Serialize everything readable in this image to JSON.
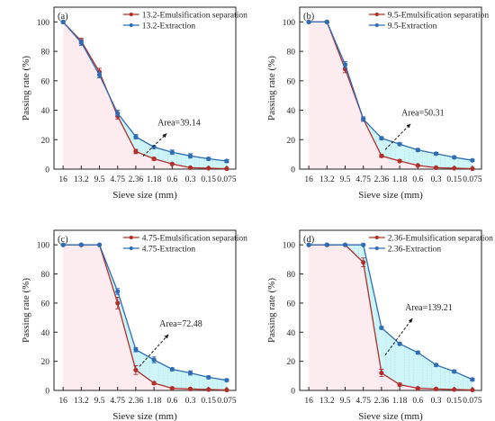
{
  "colors": {
    "emulsification": "#b0302a",
    "extraction": "#2f6db5",
    "fill": "#bdf3f7",
    "lower_fill": "#f6c8d4"
  },
  "chart_data": [
    {
      "type": "line",
      "panel_label": "(a)",
      "categories": [
        "16",
        "13.2",
        "9.5",
        "4.75",
        "2.36",
        "1.18",
        "0.6",
        "0.3",
        "0.15",
        "0.075"
      ],
      "category_offset": 1,
      "series": [
        {
          "name": "13.2-Emulsification separation",
          "values": [
            100,
            87,
            66,
            36,
            12,
            7,
            3.5,
            1,
            0.6,
            0.3
          ],
          "errors": [
            0.5,
            2,
            2.5,
            2,
            1.5,
            1,
            0.5,
            0.5,
            0.3,
            0.3
          ]
        },
        {
          "name": "13.2-Extraction",
          "values": [
            100,
            86,
            64,
            38,
            22,
            15,
            11.5,
            9,
            7,
            5.5
          ],
          "errors": [
            0.5,
            2,
            2,
            2,
            1.5,
            1,
            1.5,
            1.5,
            1,
            1
          ]
        }
      ],
      "annotation": "Area=39.14",
      "xlabel": "Sieve size (mm)",
      "ylabel": "Passing rate (%)",
      "ylim": [
        0,
        110
      ],
      "yticks": [
        0,
        20,
        40,
        60,
        80,
        100
      ],
      "legend": "top-right"
    },
    {
      "type": "line",
      "panel_label": "(b)",
      "categories": [
        "16",
        "13.2",
        "9.5",
        "4.75",
        "2.36",
        "1.18",
        "0.6",
        "0.3",
        "0.15",
        "0.075"
      ],
      "category_offset": 0,
      "series": [
        {
          "name": "9.5-Emulsification separation",
          "values": [
            100,
            100,
            68,
            34,
            9,
            5.5,
            2.5,
            1,
            0.6,
            0.3
          ],
          "errors": [
            0.5,
            0.5,
            2.5,
            1.5,
            1,
            0.8,
            0.5,
            0.4,
            0.3,
            0.3
          ]
        },
        {
          "name": "9.5-Extraction",
          "values": [
            100,
            100,
            71,
            34,
            21,
            17,
            13,
            10.5,
            8,
            6
          ],
          "errors": [
            0.5,
            0.5,
            2,
            1.5,
            1,
            1,
            1,
            0.8,
            0.8,
            0.6
          ]
        }
      ],
      "annotation": "Area=50.31",
      "xlabel": "Sieve size (mm)",
      "ylabel": "Passing rate (%)",
      "ylim": [
        0,
        110
      ],
      "yticks": [
        0,
        20,
        40,
        60,
        80,
        100
      ],
      "legend": "top-right"
    },
    {
      "type": "line",
      "panel_label": "(c)",
      "categories": [
        "16",
        "13.2",
        "9.5",
        "4.75",
        "2.36",
        "1.18",
        "0.6",
        "0.3",
        "0.15",
        "0.075"
      ],
      "category_offset": 0,
      "series": [
        {
          "name": "4.75-Emulsification separation",
          "values": [
            100,
            100,
            100,
            60,
            14,
            5,
            1.5,
            1,
            0.6,
            0.3
          ],
          "errors": [
            0.5,
            0.5,
            0.5,
            4,
            3,
            1,
            0.6,
            0.5,
            0.4,
            0.3
          ]
        },
        {
          "name": "4.75-Extraction",
          "values": [
            100,
            100,
            100,
            68,
            28,
            21,
            14.5,
            12,
            9,
            7
          ],
          "errors": [
            0.5,
            0.5,
            0.5,
            2,
            1.5,
            2,
            1,
            1.5,
            1,
            0.8
          ]
        }
      ],
      "annotation": "Area=72.48",
      "xlabel": "Sieve size (mm)",
      "ylabel": "Passing rate (%)",
      "ylim": [
        0,
        110
      ],
      "yticks": [
        0,
        20,
        40,
        60,
        80,
        100
      ],
      "legend": "top-right"
    },
    {
      "type": "line",
      "panel_label": "(d)",
      "categories": [
        "16",
        "13.2",
        "9.5",
        "4.75",
        "2.36",
        "1.18",
        "0.6",
        "0.3",
        "0.15",
        "0.075"
      ],
      "category_offset": 0,
      "series": [
        {
          "name": "2.36-Emulsification separation",
          "values": [
            100,
            100,
            100,
            88,
            12,
            4,
            1.5,
            1,
            0.6,
            0.3
          ],
          "errors": [
            0.5,
            0.5,
            0.5,
            3,
            2.5,
            1,
            0.6,
            0.5,
            0.4,
            0.3
          ]
        },
        {
          "name": "2.36-Extraction",
          "values": [
            100,
            100,
            100,
            100,
            43,
            32,
            26,
            17.5,
            13,
            7.5
          ],
          "errors": [
            0.5,
            0.5,
            0.5,
            0.5,
            1,
            1,
            1,
            1,
            1,
            1
          ]
        }
      ],
      "annotation": "Area=139.21",
      "xlabel": "Sieve size (mm)",
      "ylabel": "Passing rate (%)",
      "ylim": [
        0,
        110
      ],
      "yticks": [
        0,
        20,
        40,
        60,
        80,
        100
      ],
      "legend": "top-right"
    }
  ]
}
